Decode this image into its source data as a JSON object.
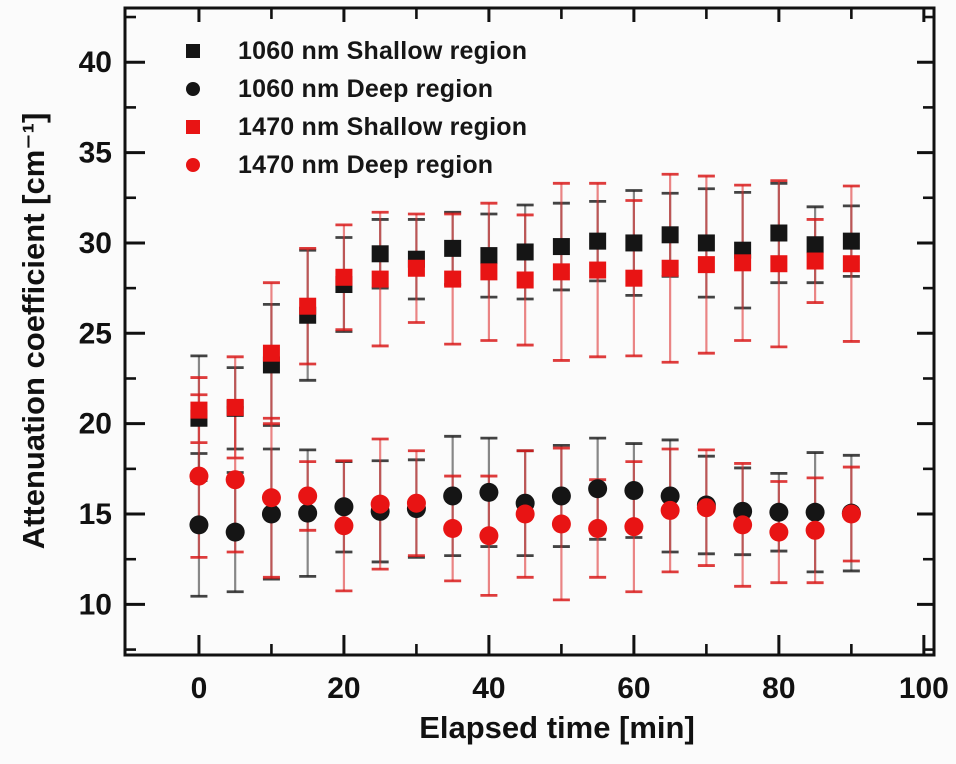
{
  "figure": {
    "background": "#fbfbfb",
    "frame_color": "#111111"
  },
  "chart_data": {
    "type": "scatter",
    "title": "",
    "xlabel": "Elapsed time [min]",
    "ylabel": "Attenuation coefficient [cm⁻¹]",
    "xlim": [
      -10.2,
      101.4
    ],
    "ylim": [
      7.2,
      43.0
    ],
    "x_major_ticks": [
      0,
      20,
      40,
      60,
      80,
      100
    ],
    "x_minor_ticks": [
      10,
      30,
      50,
      70,
      90
    ],
    "y_major_ticks": [
      10,
      15,
      20,
      25,
      30,
      35,
      40
    ],
    "y_minor_ticks": [
      7.5,
      12.5,
      17.5,
      22.5,
      27.5,
      32.5,
      37.5,
      42.5
    ],
    "grid": false,
    "legend_position": "top-left",
    "x": [
      0,
      5,
      10,
      15,
      20,
      25,
      30,
      35,
      40,
      45,
      50,
      55,
      60,
      65,
      70,
      75,
      80,
      85,
      90
    ],
    "series": [
      {
        "name": "1060 nm Shallow region",
        "marker": "square",
        "color": "#151515",
        "values": [
          20.3,
          20.85,
          23.25,
          26.0,
          27.7,
          29.4,
          29.1,
          29.7,
          29.3,
          29.5,
          29.8,
          30.1,
          30.0,
          30.45,
          30.0,
          29.6,
          30.55,
          29.9,
          30.1
        ],
        "errors": [
          3.45,
          2.25,
          3.35,
          3.6,
          2.6,
          1.9,
          2.2,
          2.0,
          2.3,
          2.6,
          2.4,
          2.2,
          2.9,
          2.3,
          3.0,
          3.2,
          2.75,
          2.1,
          1.95
        ]
      },
      {
        "name": "1060 nm Deep region",
        "marker": "circle",
        "color": "#151515",
        "values": [
          14.4,
          14.0,
          15.0,
          15.05,
          15.4,
          15.15,
          15.3,
          16.0,
          16.2,
          15.6,
          16.0,
          16.4,
          16.3,
          16.0,
          15.5,
          15.15,
          15.1,
          15.1,
          15.05
        ],
        "errors": [
          3.95,
          3.3,
          3.6,
          3.5,
          2.5,
          2.8,
          2.7,
          3.3,
          3.0,
          2.9,
          2.8,
          2.8,
          2.6,
          3.1,
          2.7,
          2.4,
          2.15,
          3.3,
          3.2
        ]
      },
      {
        "name": "1470 nm Shallow region",
        "marker": "square",
        "color": "#e81414",
        "values": [
          20.75,
          20.9,
          23.9,
          26.5,
          28.1,
          28.0,
          28.6,
          28.0,
          28.4,
          27.95,
          28.4,
          28.5,
          28.05,
          28.6,
          28.8,
          28.9,
          28.85,
          29.0,
          28.85
        ],
        "errors": [
          1.8,
          2.8,
          3.9,
          3.2,
          2.9,
          3.7,
          3.0,
          3.6,
          3.8,
          3.6,
          4.9,
          4.8,
          4.3,
          5.2,
          4.9,
          4.3,
          4.6,
          2.3,
          4.3
        ]
      },
      {
        "name": "1470 nm Deep region",
        "marker": "circle",
        "color": "#e81414",
        "values": [
          17.1,
          16.9,
          15.9,
          16.0,
          14.35,
          15.55,
          15.6,
          14.2,
          13.8,
          15.0,
          14.45,
          14.2,
          14.3,
          15.2,
          15.35,
          14.4,
          14.0,
          14.1,
          15.0
        ],
        "errors": [
          4.5,
          4.0,
          4.4,
          1.9,
          3.6,
          3.6,
          2.9,
          2.9,
          3.3,
          3.5,
          4.2,
          2.7,
          3.6,
          3.4,
          3.2,
          3.4,
          2.8,
          2.9,
          2.6
        ]
      }
    ]
  }
}
